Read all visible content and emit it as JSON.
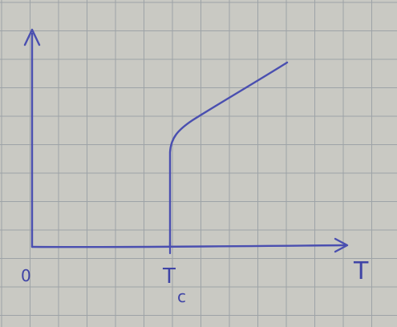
{
  "figure": {
    "origin_label": "0",
    "x_axis_label": "T",
    "critical_label_main": "T",
    "critical_label_sub": "c"
  },
  "colors": {
    "paper": "#c9c9c3",
    "grid": "#9da3a7",
    "ink": "#4a4fb0"
  },
  "chart_data": {
    "type": "line",
    "title": "",
    "xlabel": "T",
    "ylabel": "",
    "x_ticks": [
      "0",
      "Tc"
    ],
    "series": [
      {
        "description_points": [
          {
            "x": 0,
            "y": 0
          },
          {
            "x": 1,
            "y": 0
          }
        ]
      },
      {
        "description_points": [
          {
            "x": 1.0,
            "y": 0.0
          },
          {
            "x": 1.0,
            "y": 0.45
          },
          {
            "x": 1.05,
            "y": 0.55
          },
          {
            "x": 1.25,
            "y": 0.68
          },
          {
            "x": 1.6,
            "y": 0.85
          },
          {
            "x": 2.0,
            "y": 1.05
          }
        ]
      }
    ],
    "grid": true,
    "legend": "none"
  }
}
